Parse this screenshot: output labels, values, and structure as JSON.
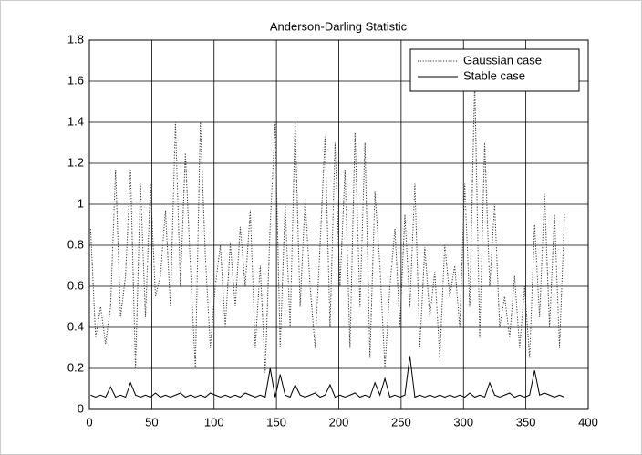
{
  "chart_data": {
    "type": "line",
    "title": "Anderson-Darling Statistic",
    "x": [
      1,
      5,
      9,
      13,
      17,
      21,
      25,
      29,
      33,
      37,
      41,
      45,
      49,
      53,
      57,
      61,
      65,
      69,
      73,
      77,
      81,
      85,
      89,
      93,
      97,
      101,
      105,
      109,
      113,
      117,
      121,
      125,
      129,
      133,
      137,
      141,
      145,
      149,
      153,
      157,
      161,
      165,
      169,
      173,
      177,
      181,
      185,
      189,
      193,
      197,
      201,
      205,
      209,
      213,
      217,
      221,
      225,
      229,
      233,
      237,
      241,
      245,
      249,
      253,
      257,
      261,
      265,
      269,
      273,
      277,
      281,
      285,
      289,
      293,
      297,
      301,
      305,
      309,
      313,
      317,
      321,
      325,
      329,
      333,
      337,
      341,
      345,
      349,
      353,
      357,
      361,
      365,
      369,
      373,
      377,
      381
    ],
    "series": [
      {
        "name": "Gaussian case",
        "color": "#333333",
        "linestyle": "dotted",
        "values": [
          0.88,
          0.35,
          0.5,
          0.32,
          0.5,
          1.17,
          0.45,
          0.65,
          1.17,
          0.2,
          1.1,
          0.45,
          1.1,
          0.55,
          0.65,
          0.97,
          0.5,
          1.4,
          0.6,
          1.25,
          0.7,
          0.2,
          1.4,
          0.75,
          0.3,
          0.6,
          0.8,
          0.4,
          0.81,
          0.5,
          0.89,
          0.6,
          0.97,
          0.3,
          0.7,
          0.18,
          0.9,
          1.4,
          0.3,
          1.0,
          0.4,
          1.4,
          0.5,
          1.03,
          0.6,
          0.3,
          0.8,
          1.33,
          0.4,
          1.3,
          0.6,
          1.17,
          0.3,
          1.35,
          0.5,
          1.3,
          0.25,
          1.06,
          0.7,
          0.2,
          0.6,
          0.88,
          0.4,
          0.95,
          0.5,
          1.1,
          0.3,
          0.79,
          0.45,
          0.67,
          0.25,
          0.8,
          0.55,
          0.7,
          0.4,
          1.1,
          0.5,
          1.6,
          0.35,
          1.3,
          0.6,
          1.0,
          0.4,
          0.55,
          0.35,
          0.65,
          0.3,
          0.6,
          0.25,
          0.9,
          0.45,
          1.05,
          0.4,
          0.95,
          0.3,
          0.95
        ]
      },
      {
        "name": "Stable case",
        "color": "#000000",
        "linestyle": "solid",
        "values": [
          0.07,
          0.06,
          0.07,
          0.06,
          0.11,
          0.06,
          0.07,
          0.06,
          0.13,
          0.07,
          0.06,
          0.07,
          0.06,
          0.08,
          0.06,
          0.07,
          0.06,
          0.07,
          0.08,
          0.06,
          0.07,
          0.06,
          0.07,
          0.06,
          0.08,
          0.07,
          0.06,
          0.07,
          0.06,
          0.07,
          0.06,
          0.08,
          0.07,
          0.06,
          0.07,
          0.06,
          0.2,
          0.06,
          0.17,
          0.07,
          0.06,
          0.12,
          0.07,
          0.06,
          0.07,
          0.08,
          0.06,
          0.07,
          0.12,
          0.06,
          0.07,
          0.06,
          0.07,
          0.08,
          0.06,
          0.07,
          0.06,
          0.13,
          0.07,
          0.15,
          0.06,
          0.07,
          0.06,
          0.07,
          0.26,
          0.06,
          0.07,
          0.06,
          0.07,
          0.06,
          0.07,
          0.06,
          0.07,
          0.06,
          0.07,
          0.06,
          0.08,
          0.06,
          0.07,
          0.06,
          0.13,
          0.07,
          0.06,
          0.07,
          0.08,
          0.06,
          0.07,
          0.06,
          0.07,
          0.19,
          0.07,
          0.08,
          0.07,
          0.06,
          0.07,
          0.06
        ]
      }
    ],
    "xlim": [
      0,
      400
    ],
    "xticks": [
      0,
      50,
      100,
      150,
      200,
      250,
      300,
      350,
      400
    ],
    "ylim": [
      0,
      1.8
    ],
    "yticks": [
      0,
      0.2,
      0.4,
      0.6,
      0.8,
      1,
      1.2,
      1.4,
      1.6,
      1.8
    ],
    "grid": true,
    "legend": "northeast"
  }
}
